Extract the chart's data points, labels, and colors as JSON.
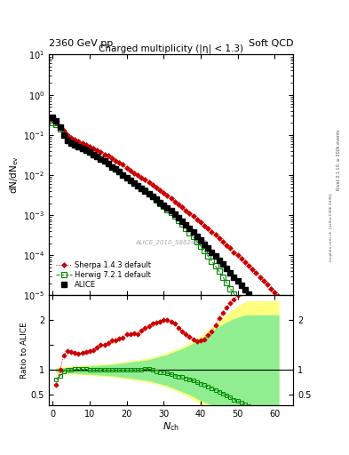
{
  "title_left": "2360 GeV pp",
  "title_right": "Soft QCD",
  "main_title": "Charged multiplicity (|η| < 1.3)",
  "xlabel": "N_ch",
  "ylabel_main": "dN/dN_ev",
  "ylabel_ratio": "Ratio to ALICE",
  "watermark": "ALICE_2010_S8624100",
  "alice_x": [
    0,
    1,
    2,
    3,
    4,
    5,
    6,
    7,
    8,
    9,
    10,
    11,
    12,
    13,
    14,
    15,
    16,
    17,
    18,
    19,
    20,
    21,
    22,
    23,
    24,
    25,
    26,
    27,
    28,
    29,
    30,
    31,
    32,
    33,
    34,
    35,
    36,
    37,
    38,
    39,
    40,
    41,
    42,
    43,
    44,
    45,
    46,
    47,
    48,
    49,
    50,
    51,
    52,
    53,
    54,
    55,
    56,
    57,
    58,
    59,
    60,
    61
  ],
  "alice_y": [
    0.28,
    0.22,
    0.16,
    0.1,
    0.073,
    0.062,
    0.056,
    0.051,
    0.046,
    0.041,
    0.037,
    0.033,
    0.029,
    0.025,
    0.022,
    0.019,
    0.016,
    0.014,
    0.012,
    0.01,
    0.0087,
    0.0075,
    0.0064,
    0.0055,
    0.0047,
    0.004,
    0.0034,
    0.0029,
    0.0025,
    0.0021,
    0.0018,
    0.0015,
    0.00128,
    0.00107,
    0.00088,
    0.00072,
    0.00058,
    0.00047,
    0.00038,
    0.0003,
    0.00024,
    0.00019,
    0.00015,
    0.00012,
    9.5e-05,
    7.5e-05,
    6e-05,
    4.7e-05,
    3.7e-05,
    2.9e-05,
    2.3e-05,
    1.8e-05,
    1.4e-05,
    1.1e-05,
    8.5e-06,
    6.6e-06,
    5.1e-06,
    3.9e-06,
    3e-06,
    2.3e-06,
    1.8e-06,
    1.4e-06
  ],
  "herwig_x": [
    0,
    1,
    2,
    3,
    4,
    5,
    6,
    7,
    8,
    9,
    10,
    11,
    12,
    13,
    14,
    15,
    16,
    17,
    18,
    19,
    20,
    21,
    22,
    23,
    24,
    25,
    26,
    27,
    28,
    29,
    30,
    31,
    32,
    33,
    34,
    35,
    36,
    37,
    38,
    39,
    40,
    41,
    42,
    43,
    44,
    45,
    46,
    47,
    48,
    49,
    50,
    51,
    52,
    53,
    54,
    55,
    56,
    57,
    58,
    59,
    60,
    61
  ],
  "herwig_y": [
    0.2,
    0.18,
    0.14,
    0.098,
    0.073,
    0.062,
    0.057,
    0.052,
    0.047,
    0.042,
    0.037,
    0.033,
    0.029,
    0.025,
    0.022,
    0.019,
    0.016,
    0.014,
    0.012,
    0.01,
    0.0087,
    0.0075,
    0.0064,
    0.0055,
    0.0047,
    0.0041,
    0.0034,
    0.0029,
    0.0024,
    0.002,
    0.00168,
    0.00139,
    0.00115,
    0.00094,
    0.00076,
    0.0006,
    0.00048,
    0.00037,
    0.00029,
    0.00022,
    0.00017,
    0.00013,
    9.6e-05,
    7.2e-05,
    5.4e-05,
    4e-05,
    2.9e-05,
    2.1e-05,
    1.5e-05,
    1.1e-05,
    8e-06,
    5.7e-06,
    4e-06,
    2.8e-06,
    1.9e-06,
    1.3e-06,
    9.2e-07,
    6.3e-07,
    4.3e-07,
    2.9e-07,
    2e-07,
    1.3e-07
  ],
  "sherpa_x": [
    0,
    1,
    2,
    3,
    4,
    5,
    6,
    7,
    8,
    9,
    10,
    11,
    12,
    13,
    14,
    15,
    16,
    17,
    18,
    19,
    20,
    21,
    22,
    23,
    24,
    25,
    26,
    27,
    28,
    29,
    30,
    31,
    32,
    33,
    34,
    35,
    36,
    37,
    38,
    39,
    40,
    41,
    42,
    43,
    44,
    45,
    46,
    47,
    48,
    49,
    50,
    51,
    52,
    53,
    54,
    55,
    56,
    57,
    58,
    59,
    60,
    61,
    62,
    63,
    64
  ],
  "sherpa_y": [
    0.24,
    0.2,
    0.16,
    0.13,
    0.1,
    0.085,
    0.075,
    0.068,
    0.062,
    0.056,
    0.051,
    0.046,
    0.041,
    0.037,
    0.033,
    0.03,
    0.026,
    0.023,
    0.02,
    0.018,
    0.015,
    0.013,
    0.011,
    0.01,
    0.0087,
    0.0076,
    0.0066,
    0.0057,
    0.0049,
    0.0042,
    0.0036,
    0.0031,
    0.0026,
    0.0022,
    0.0019,
    0.0016,
    0.0013,
    0.0011,
    0.00095,
    0.0008,
    0.00067,
    0.00056,
    0.00047,
    0.00039,
    0.00032,
    0.00027,
    0.00022,
    0.00018,
    0.00015,
    0.00012,
    0.0001,
    8.2e-05,
    6.7e-05,
    5.4e-05,
    4.4e-05,
    3.6e-05,
    2.9e-05,
    2.3e-05,
    1.9e-05,
    1.5e-05,
    1.2e-05,
    9.7e-06,
    7.9e-06,
    6.3e-06,
    5.2e-06
  ],
  "herwig_ratio_x": [
    1,
    2,
    3,
    4,
    5,
    6,
    7,
    8,
    9,
    10,
    11,
    12,
    13,
    14,
    15,
    16,
    17,
    18,
    19,
    20,
    21,
    22,
    23,
    24,
    25,
    26,
    27,
    28,
    29,
    30,
    31,
    32,
    33,
    34,
    35,
    36,
    37,
    38,
    39,
    40,
    41,
    42,
    43,
    44,
    45,
    46,
    47,
    48,
    49,
    50,
    51,
    52,
    53,
    54,
    55,
    56,
    57,
    58,
    59,
    60,
    61
  ],
  "herwig_ratio": [
    0.82,
    0.875,
    0.98,
    1.0,
    1.0,
    1.02,
    1.02,
    1.02,
    1.02,
    1.0,
    1.0,
    1.0,
    1.0,
    1.0,
    1.0,
    1.0,
    1.0,
    1.0,
    1.0,
    1.0,
    1.0,
    1.0,
    1.0,
    1.0,
    1.025,
    1.025,
    1.0,
    0.97,
    0.95,
    0.95,
    0.93,
    0.92,
    0.89,
    0.87,
    0.86,
    0.83,
    0.81,
    0.79,
    0.75,
    0.73,
    0.7,
    0.67,
    0.64,
    0.6,
    0.57,
    0.53,
    0.49,
    0.45,
    0.41,
    0.38,
    0.35,
    0.31,
    0.28,
    0.25,
    0.22,
    0.2,
    0.18,
    0.16,
    0.14,
    0.12,
    0.1
  ],
  "sherpa_ratio_x": [
    1,
    2,
    3,
    4,
    5,
    6,
    7,
    8,
    9,
    10,
    11,
    12,
    13,
    14,
    15,
    16,
    17,
    18,
    19,
    20,
    21,
    22,
    23,
    24,
    25,
    26,
    27,
    28,
    29,
    30,
    31,
    32,
    33,
    34,
    35,
    36,
    37,
    38,
    39,
    40,
    41,
    42,
    43,
    44,
    45,
    46,
    47,
    48,
    49,
    50,
    51,
    52,
    53,
    54,
    55,
    56,
    57,
    58,
    59,
    60,
    61,
    62,
    63,
    64
  ],
  "sherpa_ratio": [
    0.71,
    1.0,
    1.3,
    1.38,
    1.37,
    1.34,
    1.33,
    1.35,
    1.37,
    1.38,
    1.4,
    1.45,
    1.5,
    1.5,
    1.55,
    1.6,
    1.6,
    1.63,
    1.65,
    1.73,
    1.72,
    1.74,
    1.72,
    1.8,
    1.85,
    1.88,
    1.93,
    1.96,
    1.97,
    2.0,
    2.0,
    1.97,
    1.93,
    1.85,
    1.78,
    1.73,
    1.67,
    1.62,
    1.58,
    1.6,
    1.62,
    1.7,
    1.78,
    1.9,
    2.05,
    2.15,
    2.25,
    2.35,
    2.42,
    2.5,
    2.55,
    2.62,
    2.65,
    2.7,
    2.75,
    2.78,
    2.82,
    2.8,
    2.85,
    2.85,
    2.85,
    2.85,
    2.85,
    2.85
  ],
  "band_yellow_upper": [
    1.05,
    1.05,
    1.06,
    1.07,
    1.07,
    1.08,
    1.08,
    1.09,
    1.09,
    1.1,
    1.1,
    1.11,
    1.11,
    1.12,
    1.12,
    1.13,
    1.14,
    1.15,
    1.16,
    1.17,
    1.18,
    1.19,
    1.2,
    1.21,
    1.22,
    1.24,
    1.25,
    1.27,
    1.29,
    1.32,
    1.34,
    1.37,
    1.4,
    1.43,
    1.46,
    1.5,
    1.54,
    1.58,
    1.63,
    1.68,
    1.73,
    1.79,
    1.85,
    1.91,
    1.97,
    2.04,
    2.1,
    2.16,
    2.22,
    2.27,
    2.32,
    2.35,
    2.38,
    2.38,
    2.38,
    2.38,
    2.38,
    2.38,
    2.38,
    2.38,
    2.38
  ],
  "band_yellow_lower": [
    0.95,
    0.95,
    0.94,
    0.93,
    0.93,
    0.92,
    0.92,
    0.91,
    0.91,
    0.9,
    0.9,
    0.89,
    0.89,
    0.88,
    0.88,
    0.87,
    0.86,
    0.85,
    0.84,
    0.83,
    0.82,
    0.81,
    0.8,
    0.79,
    0.78,
    0.76,
    0.75,
    0.73,
    0.71,
    0.68,
    0.66,
    0.63,
    0.6,
    0.57,
    0.54,
    0.5,
    0.46,
    0.42,
    0.37,
    0.33,
    0.3,
    0.3,
    0.3,
    0.3,
    0.3,
    0.3,
    0.3,
    0.3,
    0.3,
    0.3,
    0.3,
    0.3,
    0.3,
    0.3,
    0.3,
    0.3,
    0.3,
    0.3,
    0.3,
    0.3,
    0.3
  ],
  "band_green_upper": [
    1.03,
    1.03,
    1.04,
    1.04,
    1.05,
    1.05,
    1.06,
    1.06,
    1.07,
    1.07,
    1.08,
    1.08,
    1.09,
    1.09,
    1.1,
    1.1,
    1.11,
    1.12,
    1.13,
    1.14,
    1.15,
    1.16,
    1.17,
    1.18,
    1.19,
    1.2,
    1.22,
    1.24,
    1.26,
    1.28,
    1.3,
    1.33,
    1.36,
    1.39,
    1.42,
    1.45,
    1.49,
    1.53,
    1.57,
    1.62,
    1.67,
    1.72,
    1.77,
    1.82,
    1.87,
    1.91,
    1.95,
    1.99,
    2.02,
    2.05,
    2.07,
    2.09,
    2.1,
    2.1,
    2.1,
    2.1,
    2.1,
    2.1,
    2.1,
    2.1,
    2.1
  ],
  "band_green_lower": [
    0.97,
    0.97,
    0.96,
    0.96,
    0.95,
    0.95,
    0.94,
    0.94,
    0.93,
    0.93,
    0.92,
    0.92,
    0.91,
    0.91,
    0.9,
    0.9,
    0.89,
    0.88,
    0.87,
    0.86,
    0.85,
    0.84,
    0.83,
    0.82,
    0.81,
    0.8,
    0.78,
    0.76,
    0.74,
    0.72,
    0.7,
    0.67,
    0.64,
    0.61,
    0.58,
    0.55,
    0.52,
    0.48,
    0.44,
    0.4,
    0.37,
    0.34,
    0.32,
    0.3,
    0.3,
    0.3,
    0.3,
    0.3,
    0.3,
    0.3,
    0.3,
    0.3,
    0.3,
    0.3,
    0.3,
    0.3,
    0.3,
    0.3,
    0.3,
    0.3,
    0.3
  ],
  "alice_color": "#000000",
  "herwig_color": "#008800",
  "sherpa_color": "#cc0000",
  "yellow_color": "#ffff80",
  "green_color": "#90ee90",
  "ylim_main": [
    1e-05,
    10
  ],
  "ylim_ratio": [
    0.3,
    2.5
  ],
  "xlim": [
    -1,
    65
  ]
}
